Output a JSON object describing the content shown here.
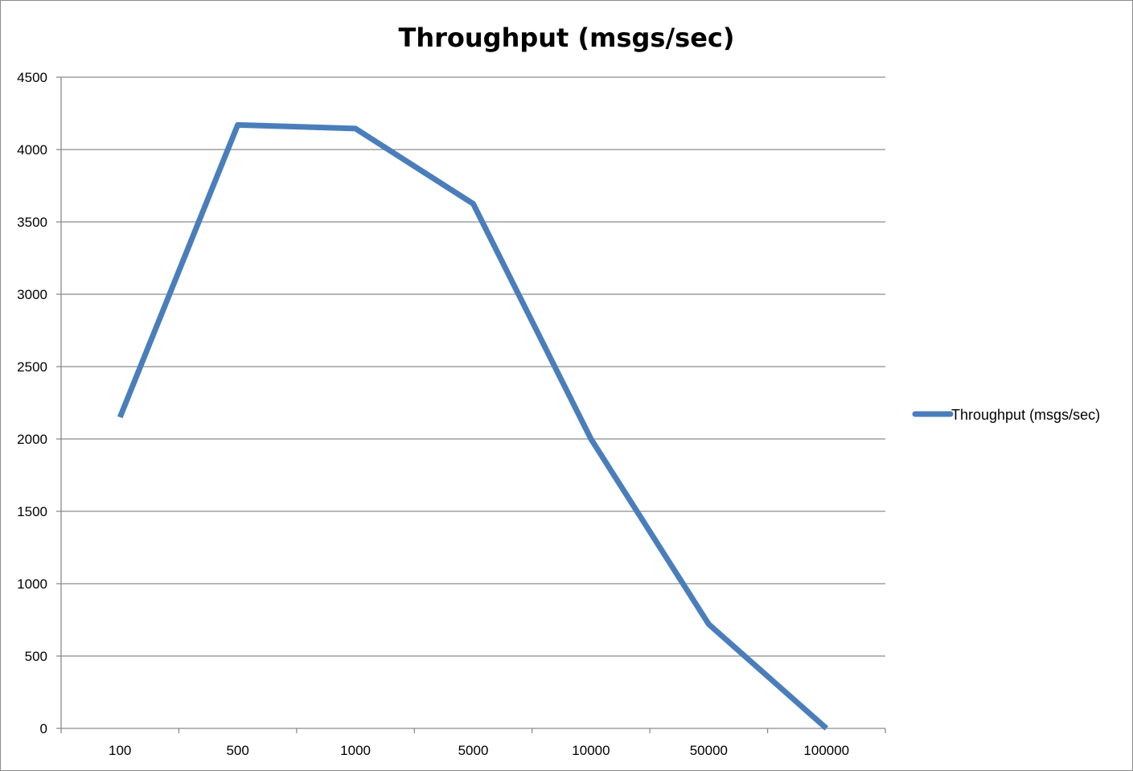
{
  "chart_data": {
    "type": "line",
    "title": "Throughput (msgs/sec)",
    "xlabel": "",
    "ylabel": "",
    "categories": [
      "100",
      "500",
      "1000",
      "5000",
      "10000",
      "50000",
      "100000"
    ],
    "series": [
      {
        "name": "Throughput (msgs/sec)",
        "values": [
          2150,
          4170,
          4145,
          3625,
          2000,
          720,
          0
        ],
        "color": "#4a7ebb"
      }
    ],
    "ylim": [
      0,
      4500
    ],
    "yticks": [
      0,
      500,
      1000,
      1500,
      2000,
      2500,
      3000,
      3500,
      4000,
      4500
    ],
    "grid": true,
    "legend_position": "right"
  }
}
